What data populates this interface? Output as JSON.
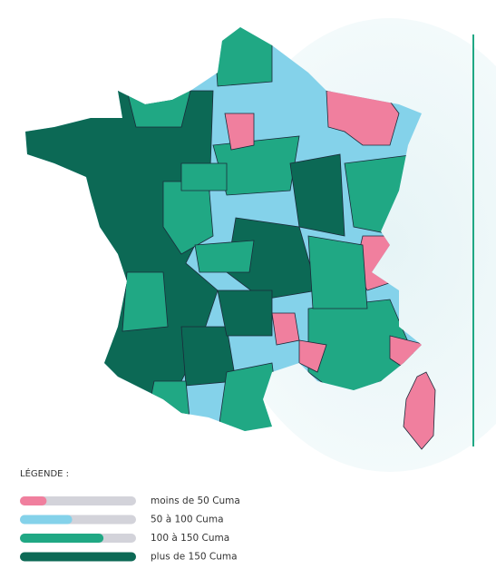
{
  "legend": {
    "title": "LÉGENDE :",
    "items": [
      {
        "label": "moins de 50 Cuma",
        "color": "#f07f9e"
      },
      {
        "label": "50 à 100 Cuma",
        "color": "#84d2ea"
      },
      {
        "label": "100 à 150 Cuma",
        "color": "#20a884"
      },
      {
        "label": "plus de 150 Cuma",
        "color": "#0c6955"
      }
    ]
  }
}
